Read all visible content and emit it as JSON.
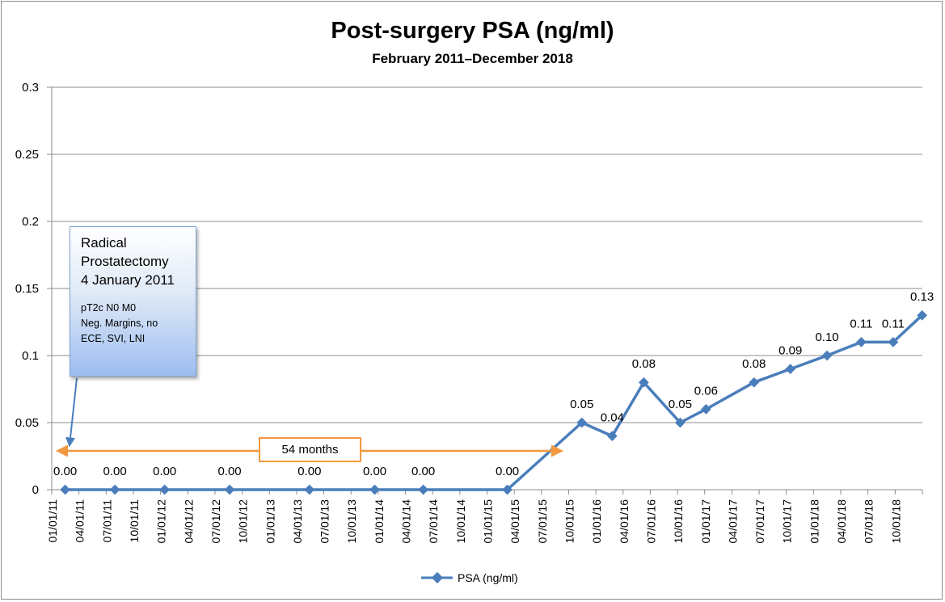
{
  "chart_data": {
    "type": "line",
    "title": "Post-surgery PSA (ng/ml)",
    "subtitle": "February 2011–December 2018",
    "xlabel": "",
    "ylabel": "",
    "ylim": [
      0,
      0.3
    ],
    "y_ticks": [
      "0",
      "0.05",
      "0.1",
      "0.15",
      "0.2",
      "0.25",
      "0.3"
    ],
    "x_ticks": [
      "01/01/11",
      "04/01/11",
      "07/01/11",
      "10/01/11",
      "01/01/12",
      "04/01/12",
      "07/01/12",
      "10/01/12",
      "01/01/13",
      "04/01/13",
      "07/01/13",
      "10/01/13",
      "01/01/14",
      "04/01/14",
      "07/01/14",
      "10/01/14",
      "01/01/15",
      "04/01/15",
      "07/01/15",
      "10/01/15",
      "01/01/16",
      "04/01/16",
      "07/01/16",
      "10/01/16",
      "01/01/17",
      "04/01/17",
      "07/01/17",
      "10/01/17",
      "01/01/18",
      "04/01/18",
      "07/01/18",
      "10/01/18"
    ],
    "grid": "horizontal",
    "legend_position": "bottom",
    "series": [
      {
        "name": "PSA (ng/ml)",
        "color": "#4a7ebb",
        "points": [
          {
            "x": "2011-02-15",
            "y": 0.0,
            "label": "0.00"
          },
          {
            "x": "2011-08-01",
            "y": 0.0,
            "label": "0.00"
          },
          {
            "x": "2012-01-15",
            "y": 0.0,
            "label": "0.00"
          },
          {
            "x": "2012-08-20",
            "y": 0.0,
            "label": "0.00"
          },
          {
            "x": "2013-05-15",
            "y": 0.0,
            "label": "0.00"
          },
          {
            "x": "2013-12-20",
            "y": 0.0,
            "label": "0.00"
          },
          {
            "x": "2014-06-01",
            "y": 0.0,
            "label": "0.00"
          },
          {
            "x": "2015-03-10",
            "y": 0.0,
            "label": "0.00"
          },
          {
            "x": "2015-11-15",
            "y": 0.05,
            "label": "0.05"
          },
          {
            "x": "2016-02-25",
            "y": 0.04,
            "label": "0.04"
          },
          {
            "x": "2016-06-10",
            "y": 0.08,
            "label": "0.08"
          },
          {
            "x": "2016-10-10",
            "y": 0.05,
            "label": "0.05"
          },
          {
            "x": "2017-01-05",
            "y": 0.06,
            "label": "0.06"
          },
          {
            "x": "2017-06-15",
            "y": 0.08,
            "label": "0.08"
          },
          {
            "x": "2017-10-15",
            "y": 0.09,
            "label": "0.09"
          },
          {
            "x": "2018-02-15",
            "y": 0.1,
            "label": "0.10"
          },
          {
            "x": "2018-06-10",
            "y": 0.11,
            "label": "0.11"
          },
          {
            "x": "2018-09-25",
            "y": 0.11,
            "label": "0.11"
          },
          {
            "x": "2018-12-31",
            "y": 0.13,
            "label": "0.13"
          }
        ]
      }
    ],
    "annotations": {
      "callout_lines": [
        "Radical",
        "Prostatectomy",
        "4 January 2011"
      ],
      "callout_detail_lines": [
        "pT2c N0 M0",
        "Neg. Margins, no",
        "ECE, SVI, LNI"
      ],
      "span_label": "54 months"
    }
  },
  "colors": {
    "line": "#4a7ebb",
    "gridline": "#8c8c8c",
    "arrow": "#f2973e",
    "callout_border": "#7ea6d6"
  }
}
